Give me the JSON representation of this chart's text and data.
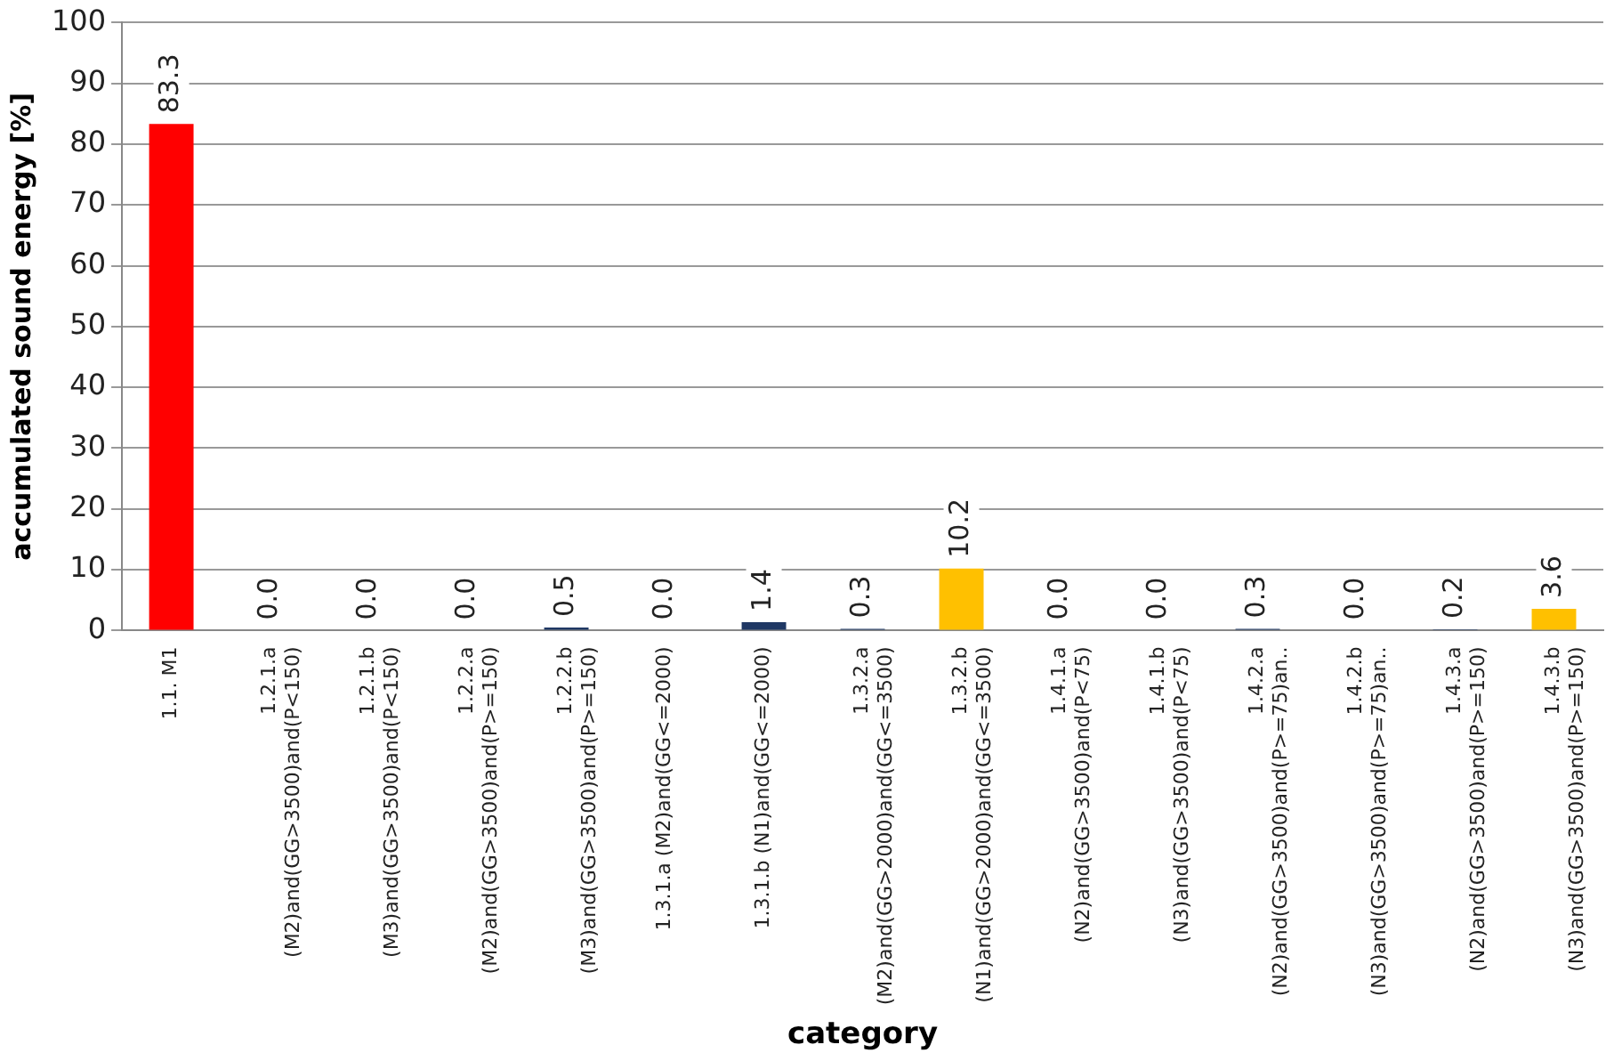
{
  "chart_data": {
    "type": "bar",
    "xlabel": "category",
    "ylabel": "accumulated sound energy [%]",
    "categories": [
      "1.1. M1",
      "1.2.1.a\n(M2)and(GG>3500)and(P<150)",
      "1.2.1.b\n(M3)and(GG>3500)and(P<150)",
      "1.2.2.a\n(M2)and(GG>3500)and(P>=150)",
      "1.2.2.b\n(M3)and(GG>3500)and(P>=150)",
      "1.3.1.a (M2)and(GG<=2000)",
      "1.3.1.b (N1)and(GG<=2000)",
      "1.3.2.a\n(M2)and(GG>2000)and(GG<=3500)",
      "1.3.2.b\n(N1)and(GG>2000)and(GG<=3500)",
      "1.4.1.a\n(N2)and(GG>3500)and(P<75)",
      "1.4.1.b\n(N3)and(GG>3500)and(P<75)",
      "1.4.2.a\n(N2)and(GG>3500)and(P>=75)an..",
      "1.4.2.b\n(N3)and(GG>3500)and(P>=75)an..",
      "1.4.3.a\n(N2)and(GG>3500)and(P>=150)",
      "1.4.3.b\n(N3)and(GG>3500)and(P>=150)"
    ],
    "values": [
      83.3,
      0.0,
      0.0,
      0.0,
      0.5,
      0.0,
      1.4,
      0.3,
      10.2,
      0.0,
      0.0,
      0.3,
      0.0,
      0.2,
      3.6
    ],
    "value_labels": [
      "83.3",
      "0.0",
      "0.0",
      "0.0",
      "0.5",
      "0.0",
      "1.4",
      "0.3",
      "10.2",
      "0.0",
      "0.0",
      "0.3",
      "0.0",
      "0.2",
      "3.6"
    ],
    "colors": [
      "#ff0000",
      "#1f3864",
      "#1f3864",
      "#1f3864",
      "#1f3864",
      "#1f3864",
      "#1f3864",
      "#1f3864",
      "#ffc000",
      "#1f3864",
      "#1f3864",
      "#1f3864",
      "#1f3864",
      "#1f3864",
      "#ffc000"
    ],
    "ylim": [
      0,
      100
    ],
    "yticks": [
      0,
      10,
      20,
      30,
      40,
      50,
      60,
      70,
      80,
      90,
      100
    ],
    "grid": "y",
    "legend": false
  }
}
